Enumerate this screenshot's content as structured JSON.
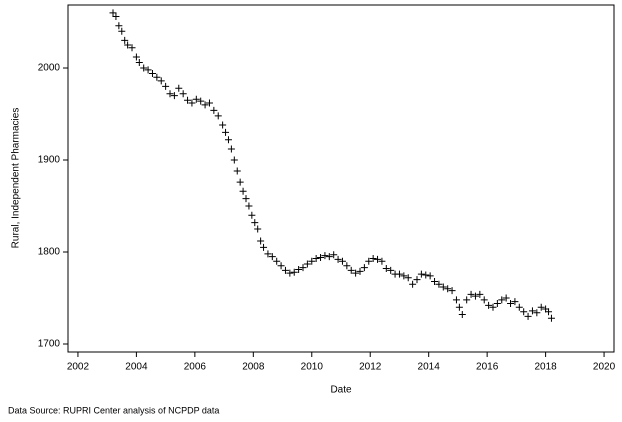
{
  "chart_data": {
    "type": "scatter",
    "x_label": "Date",
    "y_label": "Rural, Independent Pharmacies",
    "source": "Data Source: RUPRI Center analysis of NCPDP data",
    "color": "#000000",
    "marker": "plus",
    "xlim": [
      2001.66,
      2020.34
    ],
    "ylim": [
      1691.3,
      2068.5
    ],
    "xticks": [
      2002,
      2004,
      2006,
      2008,
      2010,
      2012,
      2014,
      2016,
      2018,
      2020
    ],
    "yticks": [
      1700,
      1800,
      1900,
      2000
    ],
    "x": [
      2003.2,
      2003.3,
      2003.4,
      2003.5,
      2003.6,
      2003.7,
      2003.85,
      2004.0,
      2004.1,
      2004.25,
      2004.4,
      2004.55,
      2004.7,
      2004.85,
      2005.0,
      2005.15,
      2005.3,
      2005.45,
      2005.6,
      2005.75,
      2005.9,
      2006.05,
      2006.2,
      2006.35,
      2006.5,
      2006.65,
      2006.8,
      2006.95,
      2007.05,
      2007.15,
      2007.25,
      2007.35,
      2007.45,
      2007.55,
      2007.65,
      2007.75,
      2007.85,
      2007.95,
      2008.05,
      2008.15,
      2008.25,
      2008.35,
      2008.5,
      2008.65,
      2008.8,
      2008.95,
      2009.1,
      2009.25,
      2009.4,
      2009.55,
      2009.7,
      2009.85,
      2010.0,
      2010.15,
      2010.3,
      2010.45,
      2010.6,
      2010.75,
      2010.9,
      2011.05,
      2011.2,
      2011.35,
      2011.5,
      2011.65,
      2011.8,
      2011.95,
      2012.1,
      2012.25,
      2012.4,
      2012.55,
      2012.7,
      2012.85,
      2013.0,
      2013.15,
      2013.3,
      2013.45,
      2013.6,
      2013.75,
      2013.9,
      2014.05,
      2014.2,
      2014.35,
      2014.5,
      2014.65,
      2014.8,
      2014.95,
      2015.05,
      2015.15,
      2015.3,
      2015.45,
      2015.6,
      2015.75,
      2015.9,
      2016.05,
      2016.2,
      2016.35,
      2016.5,
      2016.65,
      2016.8,
      2016.95,
      2017.1,
      2017.25,
      2017.4,
      2017.55,
      2017.7,
      2017.85,
      2018.0,
      2018.1,
      2018.2
    ],
    "values": [
      2060,
      2056,
      2046,
      2040,
      2030,
      2025,
      2022,
      2012,
      2006,
      2000,
      1998,
      1994,
      1990,
      1986,
      1980,
      1972,
      1970,
      1978,
      1972,
      1965,
      1962,
      1966,
      1964,
      1960,
      1962,
      1954,
      1948,
      1938,
      1930,
      1922,
      1912,
      1900,
      1888,
      1876,
      1866,
      1858,
      1850,
      1840,
      1832,
      1825,
      1812,
      1805,
      1798,
      1795,
      1790,
      1785,
      1780,
      1777,
      1778,
      1781,
      1783,
      1787,
      1790,
      1793,
      1794,
      1796,
      1795,
      1797,
      1792,
      1790,
      1785,
      1780,
      1777,
      1779,
      1783,
      1790,
      1793,
      1792,
      1790,
      1782,
      1780,
      1776,
      1776,
      1774,
      1772,
      1765,
      1770,
      1776,
      1775,
      1774,
      1768,
      1765,
      1762,
      1760,
      1758,
      1748,
      1740,
      1732,
      1748,
      1754,
      1752,
      1754,
      1748,
      1742,
      1740,
      1744,
      1748,
      1750,
      1744,
      1746,
      1740,
      1735,
      1730,
      1736,
      1734,
      1740,
      1738,
      1735,
      1728
    ]
  }
}
